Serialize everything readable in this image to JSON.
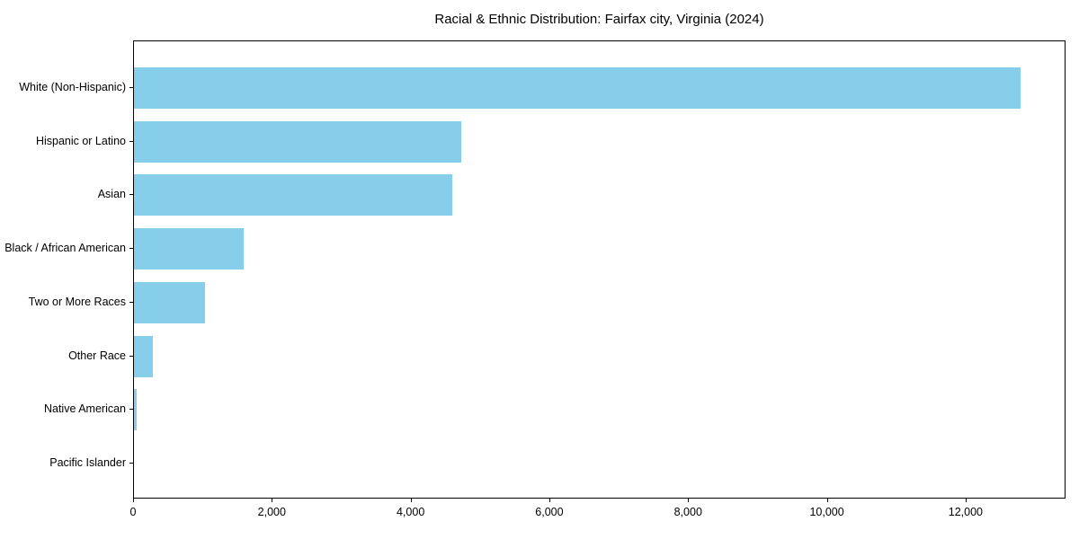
{
  "title": "Racial & Ethnic Distribution: Fairfax city, Virginia (2024)",
  "colors": {
    "bar": "#87CEEB",
    "spine": "#000000",
    "text": "#000000",
    "background": "#FFFFFF"
  },
  "chart_data": {
    "type": "bar",
    "orientation": "horizontal",
    "title": "Racial & Ethnic Distribution: Fairfax city, Virginia (2024)",
    "xlabel": "",
    "ylabel": "",
    "categories": [
      "White (Non-Hispanic)",
      "Hispanic or Latino",
      "Asian",
      "Black / African American",
      "Two or More Races",
      "Other Race",
      "Native American",
      "Pacific Islander"
    ],
    "values": [
      12800,
      4730,
      4600,
      1590,
      1030,
      270,
      45,
      0
    ],
    "xlim": [
      0,
      13440
    ],
    "x_ticks": [
      0,
      2000,
      4000,
      6000,
      8000,
      10000,
      12000
    ],
    "x_tick_labels": [
      "0",
      "2,000",
      "4,000",
      "6,000",
      "8,000",
      "10,000",
      "12,000"
    ],
    "bar_color": "#87CEEB",
    "grid": false,
    "legend": null
  }
}
